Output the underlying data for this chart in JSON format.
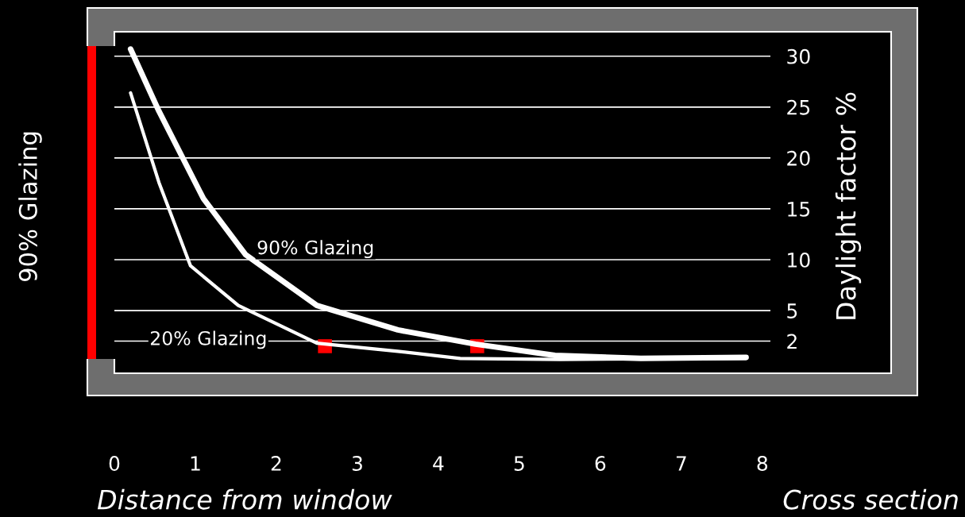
{
  "chart_data": {
    "type": "line",
    "xlabel": "Distance from window",
    "ylabel": "Daylight factor %",
    "annotations": [
      "90% Glazing",
      "Cross section"
    ],
    "xlim": [
      0,
      8.1
    ],
    "ylim": [
      -3.5,
      32.4
    ],
    "xticks": [
      0,
      1,
      2,
      3,
      4,
      5,
      6,
      7,
      8
    ],
    "yticks": [
      2,
      5,
      10,
      15,
      20,
      25,
      30
    ],
    "grid": "y",
    "series": [
      {
        "name": "90% Glazing",
        "color": "#ffffff",
        "x": [
          0.2,
          0.55,
          1.1,
          1.62,
          2.5,
          3.5,
          4.46,
          5.44,
          6.5,
          7.8
        ],
        "values": [
          30.7,
          24.6,
          16,
          10.5,
          5.5,
          3.1,
          1.7,
          0.6,
          0.3,
          0.4
        ]
      },
      {
        "name": "20% Glazing",
        "color": "#ffffff",
        "x": [
          0.2,
          0.55,
          0.94,
          1.53,
          2.5,
          3.5,
          4.27,
          5.5,
          7.8
        ],
        "values": [
          26.4,
          17.6,
          9.4,
          5.5,
          1.8,
          1.0,
          0.3,
          0.2,
          0.3
        ]
      },
      {
        "type": "scatter",
        "marker": "square",
        "color": "#ff0000",
        "x": [
          2.6,
          4.48
        ],
        "values": [
          1.5,
          1.5
        ]
      }
    ]
  }
}
